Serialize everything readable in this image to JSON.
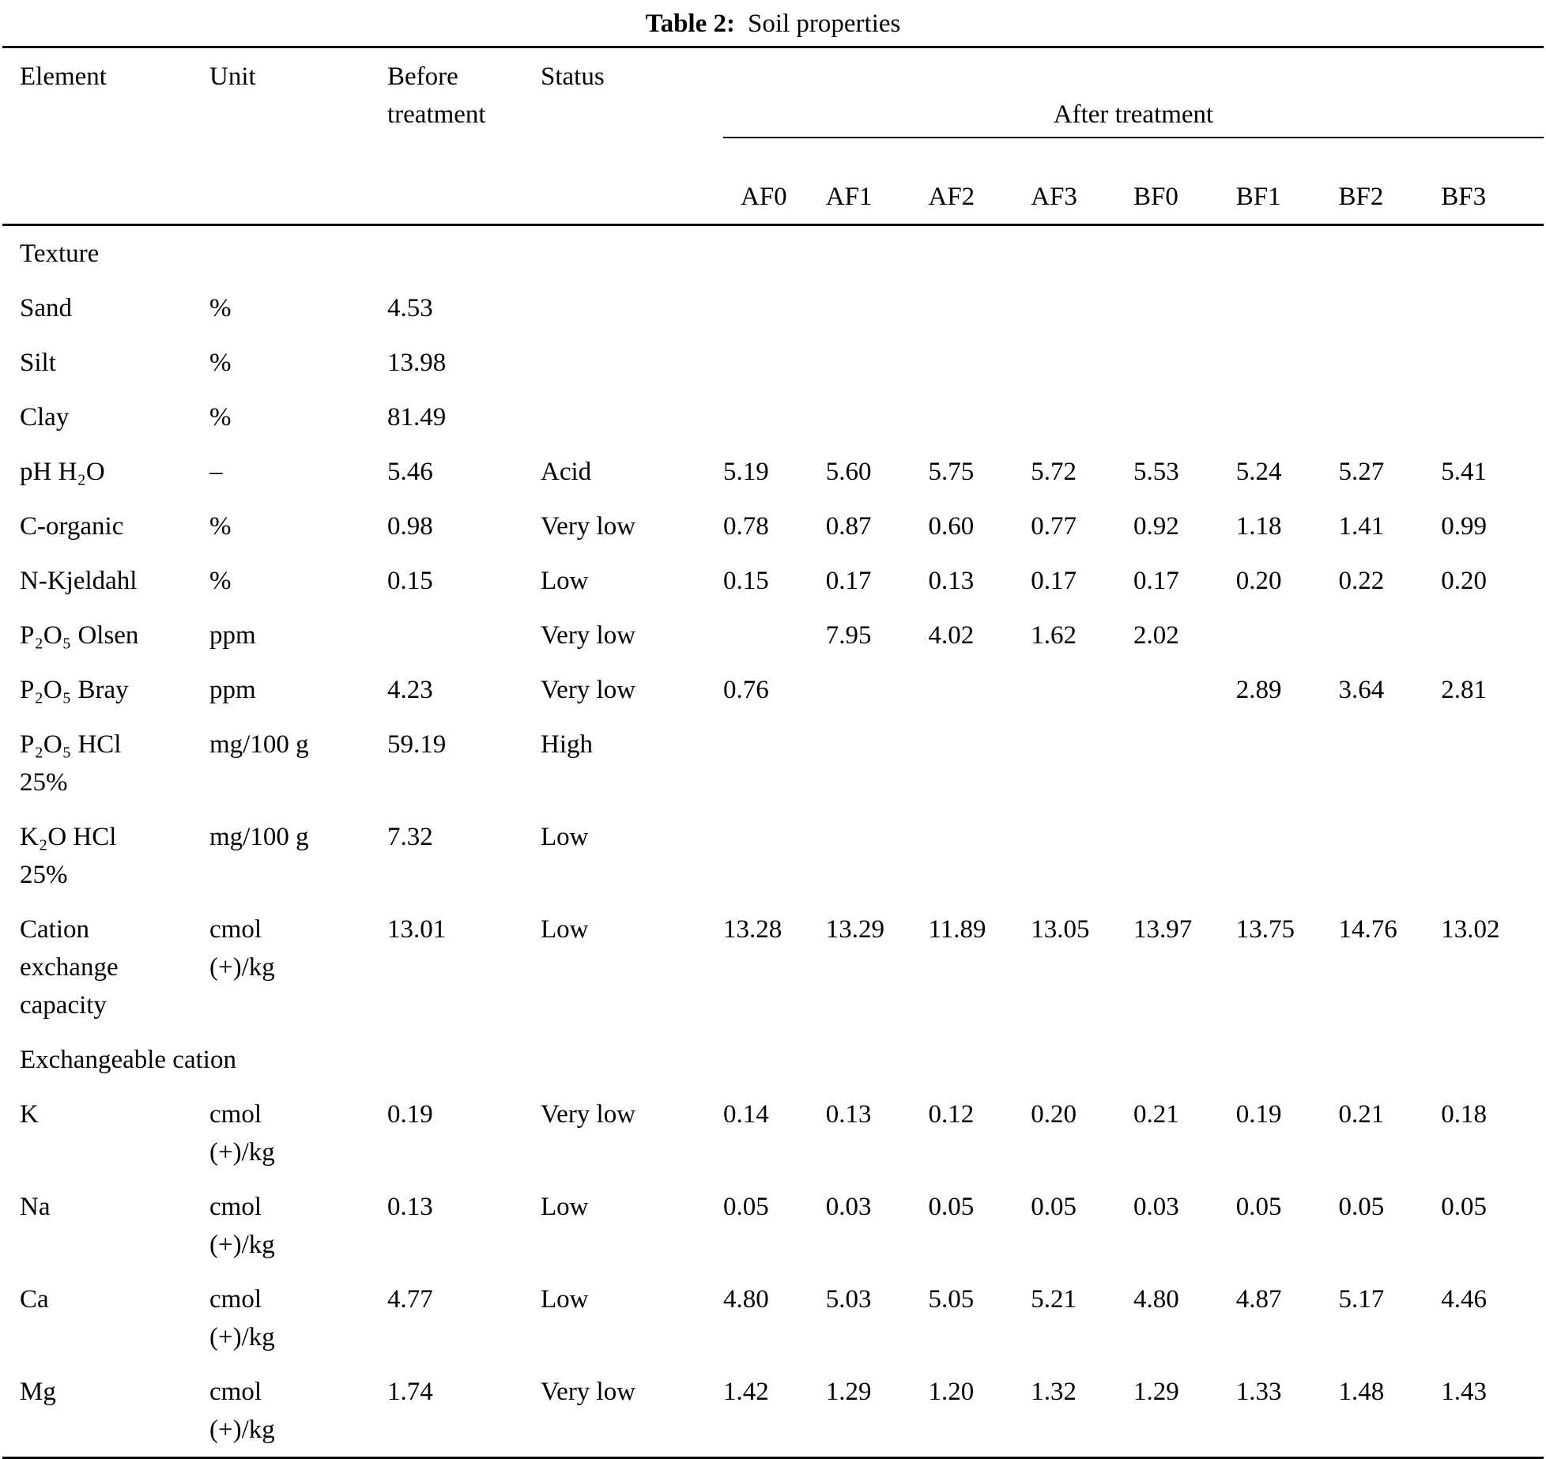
{
  "page": {
    "title_label": "Table 2:",
    "title_text": "Soil properties"
  },
  "colors": {
    "text": "#000000",
    "background": "#ffffff",
    "rule": "#000000"
  },
  "table": {
    "column_headers": {
      "element": "Element",
      "unit": "Unit",
      "before_treatment": "Before\ntreatment",
      "status": "Status",
      "after_treatment": "After treatment"
    },
    "treatment_columns": [
      "AF0",
      "AF1",
      "AF2",
      "AF3",
      "BF0",
      "BF1",
      "BF2",
      "BF3"
    ],
    "rows": [
      {
        "type": "section",
        "element": "Texture"
      },
      {
        "type": "data",
        "element": "Sand",
        "unit": "%",
        "before": "4.53",
        "status": "",
        "values": [
          "",
          "",
          "",
          "",
          "",
          "",
          "",
          ""
        ]
      },
      {
        "type": "data",
        "element": "Silt",
        "unit": "%",
        "before": "13.98",
        "status": "",
        "values": [
          "",
          "",
          "",
          "",
          "",
          "",
          "",
          ""
        ]
      },
      {
        "type": "data",
        "element": "Clay",
        "unit": "%",
        "before": "81.49",
        "status": "",
        "values": [
          "",
          "",
          "",
          "",
          "",
          "",
          "",
          ""
        ]
      },
      {
        "type": "data",
        "element": "pH H₂O",
        "unit": "–",
        "before": "5.46",
        "status": "Acid",
        "values": [
          "5.19",
          "5.60",
          "5.75",
          "5.72",
          "5.53",
          "5.24",
          "5.27",
          "5.41"
        ]
      },
      {
        "type": "data",
        "element": "C-organic",
        "unit": "%",
        "before": "0.98",
        "status": "Very low",
        "values": [
          "0.78",
          "0.87",
          "0.60",
          "0.77",
          "0.92",
          "1.18",
          "1.41",
          "0.99"
        ]
      },
      {
        "type": "data",
        "element": "N-Kjeldahl",
        "unit": "%",
        "before": "0.15",
        "status": "Low",
        "values": [
          "0.15",
          "0.17",
          "0.13",
          "0.17",
          "0.17",
          "0.20",
          "0.22",
          "0.20"
        ]
      },
      {
        "type": "data",
        "element": "P₂O₅ Olsen",
        "unit": "ppm",
        "before": "",
        "status": "Very low",
        "values": [
          "",
          "7.95",
          "4.02",
          "1.62",
          "2.02",
          "",
          "",
          ""
        ]
      },
      {
        "type": "data",
        "element": "P₂O₅ Bray",
        "unit": "ppm",
        "before": "4.23",
        "status": "Very low",
        "values": [
          "0.76",
          "",
          "",
          "",
          "",
          "2.89",
          "3.64",
          "2.81"
        ]
      },
      {
        "type": "data",
        "element": "P₂O₅ HCl\n25%",
        "unit": "mg/100 g",
        "before": "59.19",
        "status": "High",
        "values": [
          "",
          "",
          "",
          "",
          "",
          "",
          "",
          ""
        ]
      },
      {
        "type": "data",
        "element": "K₂O HCl\n25%",
        "unit": "mg/100 g",
        "before": "7.32",
        "status": "Low",
        "values": [
          "",
          "",
          "",
          "",
          "",
          "",
          "",
          ""
        ]
      },
      {
        "type": "data",
        "element": "Cation\nexchange\ncapacity",
        "unit": "cmol\n(+)/kg",
        "before": "13.01",
        "status": "Low",
        "values": [
          "13.28",
          "13.29",
          "11.89",
          "13.05",
          "13.97",
          "13.75",
          "14.76",
          "13.02"
        ]
      },
      {
        "type": "section",
        "element": "Exchangeable cation"
      },
      {
        "type": "data",
        "element": "K",
        "unit": "cmol\n(+)/kg",
        "before": "0.19",
        "status": "Very low",
        "values": [
          "0.14",
          "0.13",
          "0.12",
          "0.20",
          "0.21",
          "0.19",
          "0.21",
          "0.18"
        ]
      },
      {
        "type": "data",
        "element": "Na",
        "unit": "cmol\n(+)/kg",
        "before": "0.13",
        "status": "Low",
        "values": [
          "0.05",
          "0.03",
          "0.05",
          "0.05",
          "0.03",
          "0.05",
          "0.05",
          "0.05"
        ]
      },
      {
        "type": "data",
        "element": "Ca",
        "unit": "cmol\n(+)/kg",
        "before": "4.77",
        "status": "Low",
        "values": [
          "4.80",
          "5.03",
          "5.05",
          "5.21",
          "4.80",
          "4.87",
          "5.17",
          "4.46"
        ]
      },
      {
        "type": "data",
        "element": "Mg",
        "unit": "cmol\n(+)/kg",
        "before": "1.74",
        "status": "Very low",
        "values": [
          "1.42",
          "1.29",
          "1.20",
          "1.32",
          "1.29",
          "1.33",
          "1.48",
          "1.43"
        ]
      }
    ]
  }
}
